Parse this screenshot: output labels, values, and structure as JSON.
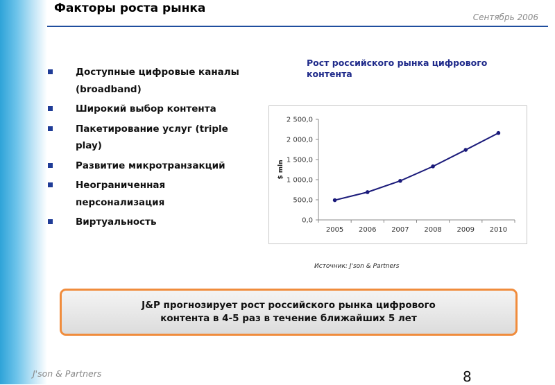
{
  "header": {
    "title": "Факторы роста рынка",
    "date": "Сентябрь 2006"
  },
  "bullets": [
    {
      "line1": "Доступные цифровые каналы",
      "line2": "(broadband)"
    },
    {
      "line1": "Широкий выбор контента",
      "line2": ""
    },
    {
      "line1": "Пакетирование услуг (triple",
      "line2": "play)"
    },
    {
      "line1": "Развитие микротранзакций",
      "line2": ""
    },
    {
      "line1": "Неограниченная",
      "line2": "персонализация"
    },
    {
      "line1": "Виртуальность",
      "line2": ""
    }
  ],
  "chart_title": {
    "line1": "Рост российского рынка цифрового",
    "line2": "контента"
  },
  "source": "Источник: J'son & Partners",
  "callout": {
    "line1": "J&P  прогнозирует рост российского рынка цифрового",
    "line2": "контента в 4-5 раз в течение ближайших 5 лет"
  },
  "footer": {
    "brand": "J'son & Partners",
    "page_number": "8"
  },
  "colors": {
    "accent_blue": "#1f3c97",
    "callout_border": "#f08c3c",
    "line_color": "#1a1a7a"
  },
  "chart_data": {
    "type": "line",
    "categories": [
      "2005",
      "2006",
      "2007",
      "2008",
      "2009",
      "2010"
    ],
    "values": [
      490,
      690,
      970,
      1330,
      1740,
      2160
    ],
    "ylabel": "$ mln",
    "ylim": [
      0,
      2500
    ],
    "yticks": [
      "0,0",
      "500,0",
      "1 000,0",
      "1 500,0",
      "2 000,0",
      "2 500,0"
    ],
    "grid": false,
    "legend": "none"
  }
}
